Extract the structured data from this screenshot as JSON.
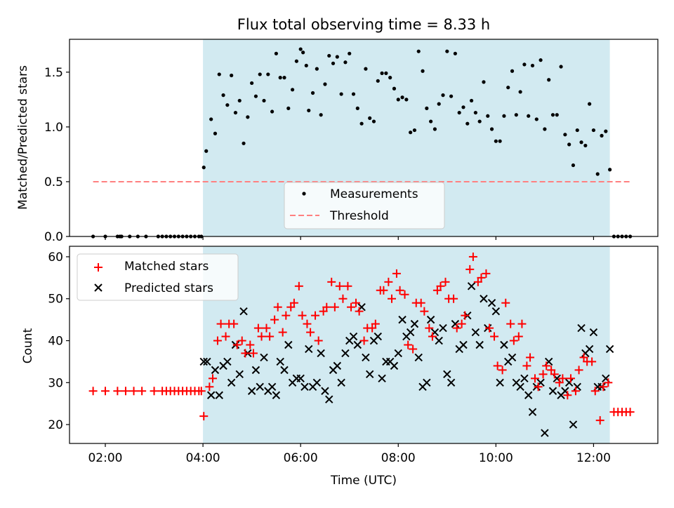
{
  "chart_data": [
    {
      "type": "scatter",
      "title": "Flux total observing time = 8.33 h",
      "xlabel": "",
      "ylabel": "Matched/Predicted stars",
      "ylim": [
        0,
        1.8
      ],
      "xlim": [
        "01:16",
        "13:19"
      ],
      "y_ticks": [
        "0.0",
        "0.5",
        "1.0",
        "1.5"
      ],
      "y_tick_values": [
        0,
        0.5,
        1.0,
        1.5
      ],
      "x_tick_labels_shown": false,
      "shaded_span": [
        "04:00",
        "12:20"
      ],
      "shade_color": "#add8e6",
      "grid": false,
      "legend": {
        "placement": "bottom-center",
        "entries": [
          "Measurements",
          "Threshold"
        ]
      },
      "threshold": {
        "name": "Threshold",
        "value": 0.5,
        "x_from": "01:45",
        "x_to": "12:45",
        "color": "#ff8080"
      },
      "series": [
        {
          "name": "Measurements",
          "color": "#000000",
          "x": [
            "01:45",
            "02:00",
            "02:15",
            "02:18",
            "02:20",
            "02:30",
            "02:40",
            "02:50",
            "03:05",
            "03:10",
            "03:15",
            "03:20",
            "03:25",
            "03:30",
            "03:35",
            "03:40",
            "03:45",
            "03:50",
            "03:55",
            "03:58",
            "04:01",
            "04:04",
            "04:10",
            "04:15",
            "04:20",
            "04:25",
            "04:30",
            "04:35",
            "04:40",
            "04:45",
            "04:50",
            "04:55",
            "05:00",
            "05:05",
            "05:10",
            "05:15",
            "05:20",
            "05:25",
            "05:30",
            "05:35",
            "05:40",
            "05:45",
            "05:50",
            "05:55",
            "06:00",
            "06:03",
            "06:07",
            "06:10",
            "06:15",
            "06:20",
            "06:25",
            "06:30",
            "06:35",
            "06:40",
            "06:45",
            "06:50",
            "06:55",
            "07:00",
            "07:05",
            "07:10",
            "07:15",
            "07:20",
            "07:25",
            "07:30",
            "07:35",
            "07:40",
            "07:45",
            "07:50",
            "07:55",
            "08:00",
            "08:05",
            "08:10",
            "08:15",
            "08:20",
            "08:25",
            "08:30",
            "08:35",
            "08:40",
            "08:45",
            "08:50",
            "08:55",
            "09:00",
            "09:05",
            "09:10",
            "09:15",
            "09:20",
            "09:25",
            "09:30",
            "09:35",
            "09:40",
            "09:45",
            "09:50",
            "09:55",
            "10:00",
            "10:05",
            "10:10",
            "10:15",
            "10:20",
            "10:25",
            "10:30",
            "10:35",
            "10:40",
            "10:45",
            "10:50",
            "10:55",
            "11:00",
            "11:05",
            "11:10",
            "11:15",
            "11:20",
            "11:25",
            "11:30",
            "11:35",
            "11:40",
            "11:45",
            "11:50",
            "11:55",
            "12:00",
            "12:05",
            "12:10",
            "12:15",
            "12:20",
            "12:25",
            "12:30",
            "12:35",
            "12:40",
            "12:45"
          ],
          "y": [
            0,
            0,
            0,
            0,
            0,
            0,
            0,
            0,
            0,
            0,
            0,
            0,
            0,
            0,
            0,
            0,
            0,
            0,
            0,
            0,
            0.63,
            0.78,
            1.07,
            0.94,
            1.48,
            1.29,
            1.2,
            1.47,
            1.13,
            1.24,
            0.85,
            1.09,
            1.4,
            1.28,
            1.48,
            1.24,
            1.48,
            1.14,
            1.67,
            1.45,
            1.45,
            1.17,
            1.34,
            1.6,
            1.71,
            1.68,
            1.56,
            1.15,
            1.31,
            1.53,
            1.11,
            1.39,
            1.65,
            1.58,
            1.64,
            1.3,
            1.59,
            1.67,
            1.3,
            1.17,
            1.03,
            1.53,
            1.08,
            1.05,
            1.42,
            1.49,
            1.49,
            1.45,
            1.35,
            1.25,
            1.27,
            1.25,
            0.95,
            0.97,
            1.69,
            1.51,
            1.17,
            1.05,
            0.98,
            1.21,
            1.29,
            1.69,
            1.28,
            1.67,
            1.13,
            1.18,
            1.03,
            1.24,
            1.13,
            1.05,
            1.41,
            1.1,
            0.98,
            0.87,
            0.87,
            1.1,
            1.36,
            1.51,
            1.11,
            1.32,
            1.57,
            1.1,
            1.56,
            1.07,
            1.61,
            0.98,
            1.43,
            1.11,
            1.11,
            1.55,
            0.93,
            0.84,
            0.65,
            0.97,
            0.86,
            0.83,
            1.21,
            0.97,
            0.57,
            0.92,
            0.96,
            0.61,
            0,
            0,
            0,
            0,
            0
          ]
        }
      ]
    },
    {
      "type": "scatter",
      "title": "",
      "xlabel": "Time (UTC)",
      "ylabel": "Count",
      "ylim": [
        15.5,
        62.5
      ],
      "xlim": [
        "01:16",
        "13:19"
      ],
      "x_ticks": [
        "02:00",
        "04:00",
        "06:00",
        "08:00",
        "10:00",
        "12:00"
      ],
      "y_ticks": [
        "20",
        "30",
        "40",
        "50",
        "60"
      ],
      "y_tick_values": [
        20,
        30,
        40,
        50,
        60
      ],
      "shaded_span": [
        "04:00",
        "12:20"
      ],
      "shade_color": "#add8e6",
      "grid": false,
      "legend": {
        "placement": "top-left",
        "entries": [
          "Matched stars",
          "Predicted stars"
        ]
      },
      "series": [
        {
          "name": "Matched stars",
          "marker": "+",
          "color": "#ff0000",
          "x": [
            "01:45",
            "02:00",
            "02:15",
            "02:25",
            "02:35",
            "02:45",
            "03:00",
            "03:10",
            "03:15",
            "03:20",
            "03:25",
            "03:30",
            "03:35",
            "03:40",
            "03:45",
            "03:50",
            "03:55",
            "03:58",
            "04:01",
            "04:08",
            "04:12",
            "04:18",
            "04:22",
            "04:28",
            "04:32",
            "04:38",
            "04:42",
            "04:48",
            "04:52",
            "04:58",
            "05:02",
            "05:08",
            "05:12",
            "05:18",
            "05:22",
            "05:28",
            "05:32",
            "05:38",
            "05:42",
            "05:48",
            "05:52",
            "05:58",
            "06:02",
            "06:08",
            "06:12",
            "06:18",
            "06:22",
            "06:28",
            "06:32",
            "06:38",
            "06:42",
            "06:48",
            "06:52",
            "06:58",
            "07:02",
            "07:08",
            "07:12",
            "07:18",
            "07:22",
            "07:28",
            "07:32",
            "07:38",
            "07:42",
            "07:48",
            "07:52",
            "07:58",
            "08:02",
            "08:08",
            "08:12",
            "08:18",
            "08:22",
            "08:28",
            "08:32",
            "08:38",
            "08:42",
            "08:48",
            "08:52",
            "08:58",
            "09:02",
            "09:08",
            "09:12",
            "09:18",
            "09:22",
            "09:28",
            "09:32",
            "09:38",
            "09:42",
            "09:48",
            "09:52",
            "09:58",
            "10:02",
            "10:08",
            "10:12",
            "10:18",
            "10:22",
            "10:28",
            "10:32",
            "10:38",
            "10:42",
            "10:48",
            "10:52",
            "10:58",
            "11:02",
            "11:08",
            "11:12",
            "11:18",
            "11:22",
            "11:28",
            "11:32",
            "11:38",
            "11:42",
            "11:48",
            "11:52",
            "11:58",
            "12:02",
            "12:08",
            "12:12",
            "12:18",
            "12:25",
            "12:30",
            "12:35",
            "12:40",
            "12:45"
          ],
          "y": [
            28,
            28,
            28,
            28,
            28,
            28,
            28,
            28,
            28,
            28,
            28,
            28,
            28,
            28,
            28,
            28,
            28,
            28,
            22,
            29,
            31,
            40,
            44,
            41,
            44,
            44,
            39,
            40,
            37,
            39,
            37,
            43,
            41,
            43,
            41,
            45,
            48,
            42,
            46,
            48,
            49,
            53,
            46,
            44,
            42,
            46,
            40,
            47,
            48,
            54,
            48,
            53,
            50,
            53,
            48,
            49,
            47,
            40,
            43,
            43,
            44,
            52,
            52,
            54,
            50,
            56,
            52,
            51,
            39,
            38,
            49,
            49,
            47,
            43,
            41,
            52,
            53,
            54,
            50,
            50,
            43,
            44,
            46,
            57,
            60,
            54,
            55,
            56,
            43,
            41,
            34,
            33,
            49,
            44,
            40,
            41,
            44,
            34,
            36,
            31,
            29,
            32,
            34,
            33,
            32,
            30,
            31,
            27,
            31,
            28,
            33,
            36,
            35,
            35,
            28,
            21,
            29,
            30,
            23,
            23,
            23,
            23,
            23
          ]
        },
        {
          "name": "Predicted stars",
          "marker": "x",
          "color": "#000000",
          "x": [
            "04:01",
            "04:05",
            "04:10",
            "04:15",
            "04:20",
            "04:25",
            "04:30",
            "04:35",
            "04:40",
            "04:45",
            "04:50",
            "04:55",
            "05:00",
            "05:05",
            "05:10",
            "05:15",
            "05:20",
            "05:25",
            "05:30",
            "05:35",
            "05:40",
            "05:45",
            "05:50",
            "05:55",
            "06:00",
            "06:05",
            "06:10",
            "06:15",
            "06:20",
            "06:25",
            "06:30",
            "06:35",
            "06:40",
            "06:45",
            "06:50",
            "06:55",
            "07:00",
            "07:05",
            "07:10",
            "07:15",
            "07:20",
            "07:25",
            "07:30",
            "07:35",
            "07:40",
            "07:45",
            "07:50",
            "07:55",
            "08:00",
            "08:05",
            "08:10",
            "08:15",
            "08:20",
            "08:25",
            "08:30",
            "08:35",
            "08:40",
            "08:45",
            "08:50",
            "08:55",
            "09:00",
            "09:05",
            "09:10",
            "09:15",
            "09:20",
            "09:25",
            "09:30",
            "09:35",
            "09:40",
            "09:45",
            "09:50",
            "09:55",
            "10:00",
            "10:05",
            "10:10",
            "10:15",
            "10:20",
            "10:25",
            "10:30",
            "10:35",
            "10:40",
            "10:45",
            "10:50",
            "10:55",
            "11:00",
            "11:05",
            "11:10",
            "11:15",
            "11:20",
            "11:25",
            "11:30",
            "11:35",
            "11:40",
            "11:45",
            "11:50",
            "11:55",
            "12:00",
            "12:05",
            "12:10",
            "12:15",
            "12:20"
          ],
          "y": [
            35,
            35,
            27,
            33,
            27,
            34,
            35,
            30,
            39,
            32,
            47,
            37,
            28,
            33,
            29,
            36,
            28,
            29,
            27,
            35,
            33,
            39,
            30,
            31,
            31,
            29,
            38,
            29,
            30,
            37,
            28,
            26,
            33,
            34,
            30,
            37,
            40,
            41,
            39,
            48,
            36,
            32,
            40,
            41,
            31,
            35,
            35,
            34,
            37,
            45,
            41,
            42,
            44,
            36,
            29,
            30,
            45,
            42,
            40,
            43,
            32,
            30,
            44,
            38,
            39,
            46,
            53,
            42,
            39,
            50,
            43,
            49,
            47,
            30,
            39,
            35,
            36,
            30,
            29,
            31,
            27,
            23,
            29,
            30,
            18,
            35,
            28,
            31,
            27,
            28,
            30,
            20,
            29,
            43,
            37,
            38,
            42,
            29,
            29,
            31,
            38
          ]
        }
      ]
    }
  ]
}
